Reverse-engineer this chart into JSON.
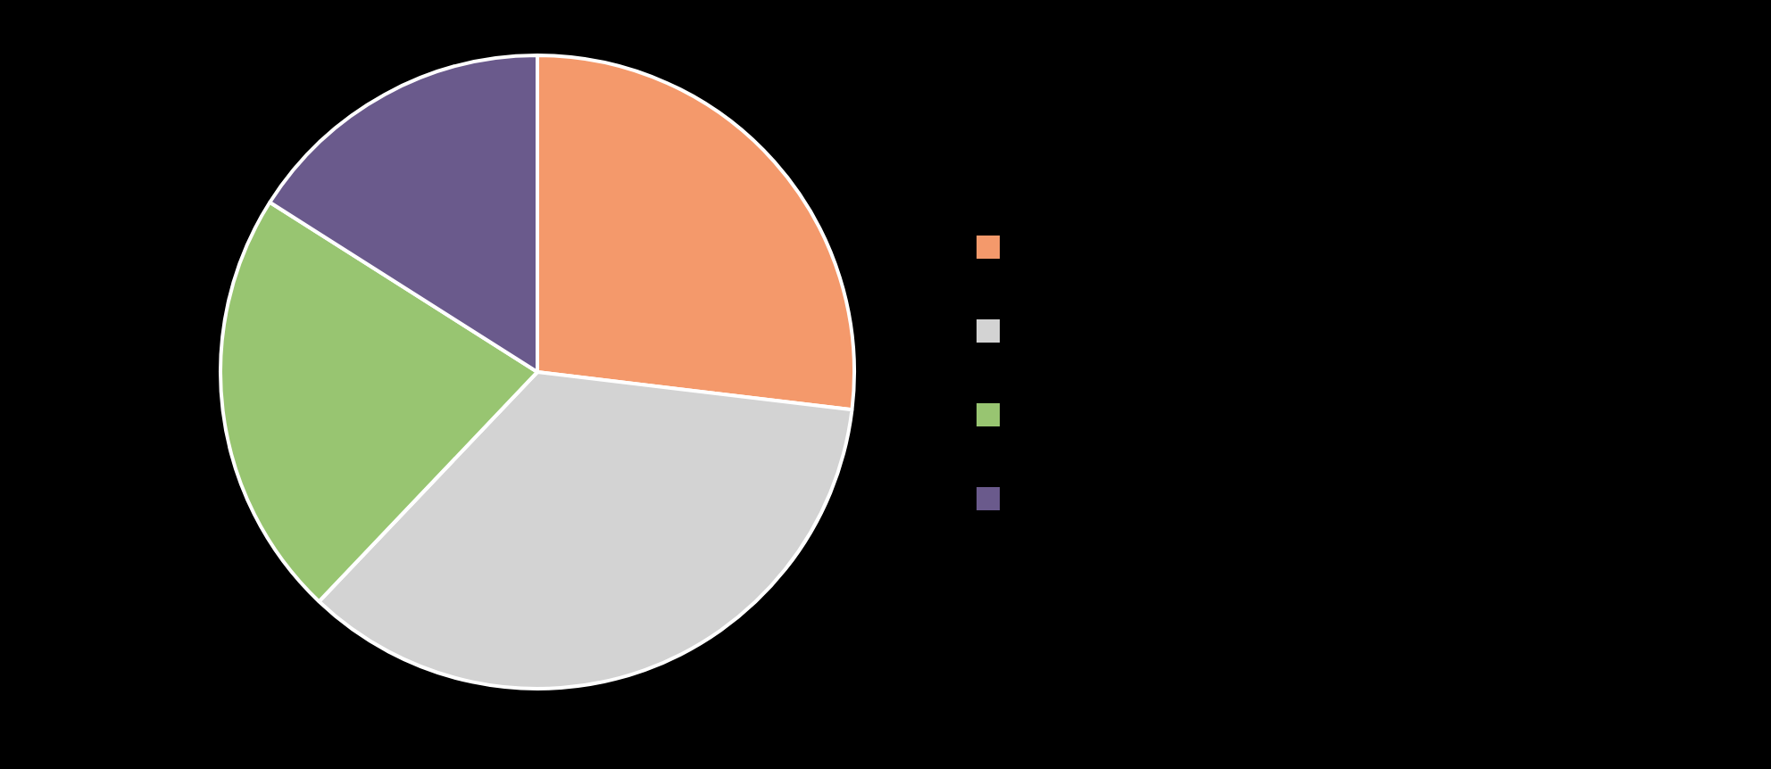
{
  "chart_data": {
    "type": "pie",
    "categories": [
      null,
      null,
      null,
      null
    ],
    "values": [
      26.9,
      35.2,
      21.9,
      16.0
    ],
    "colors": [
      "#f4996b",
      "#d3d3d3",
      "#98c571",
      "#6a5a8c"
    ]
  }
}
